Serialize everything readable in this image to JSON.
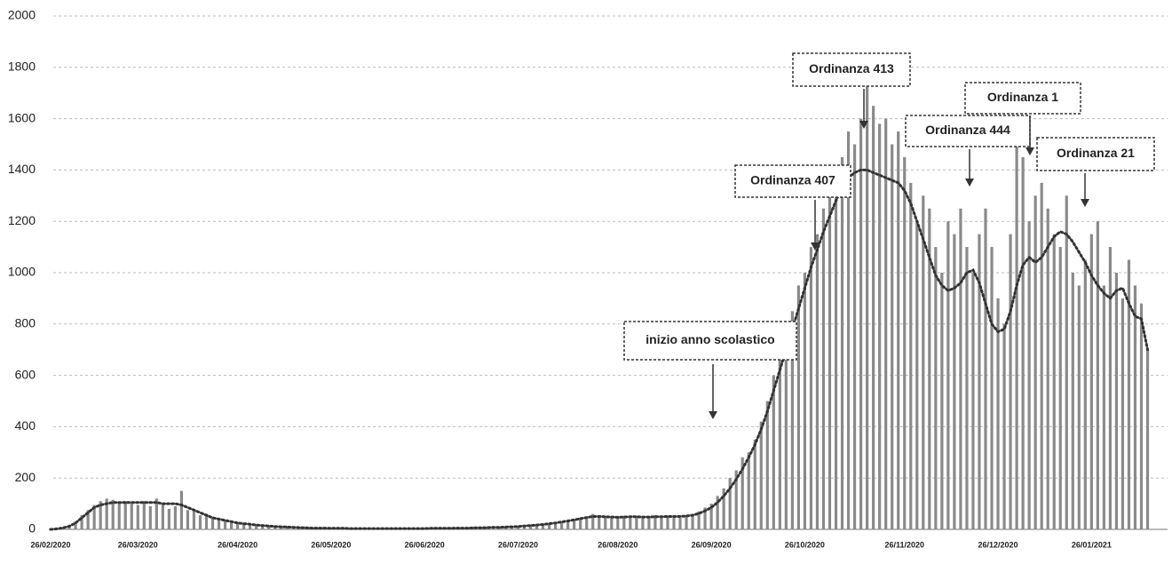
{
  "chart_data": {
    "type": "bar",
    "categories": [
      "26/02/2020",
      null,
      null,
      null,
      null,
      null,
      null,
      null,
      null,
      null,
      null,
      null,
      null,
      null,
      "26/03/2020",
      null,
      null,
      null,
      null,
      null,
      null,
      null,
      null,
      null,
      null,
      null,
      null,
      null,
      null,
      null,
      "26/04/2020",
      null,
      null,
      null,
      null,
      null,
      null,
      null,
      null,
      null,
      null,
      null,
      null,
      null,
      null,
      "26/05/2020",
      null,
      null,
      null,
      null,
      null,
      null,
      null,
      null,
      null,
      null,
      null,
      null,
      null,
      null,
      "26/06/2020",
      null,
      null,
      null,
      null,
      null,
      null,
      null,
      null,
      null,
      null,
      null,
      null,
      null,
      null,
      "26/07/2020",
      null,
      null,
      null,
      null,
      null,
      null,
      null,
      null,
      null,
      null,
      null,
      null,
      null,
      null,
      null,
      "26/08/2020",
      null,
      null,
      null,
      null,
      null,
      null,
      null,
      null,
      null,
      null,
      null,
      null,
      null,
      null,
      "26/09/2020",
      null,
      null,
      null,
      null,
      null,
      null,
      null,
      null,
      null,
      null,
      null,
      null,
      null,
      null,
      "26/10/2020",
      null,
      null,
      null,
      null,
      null,
      null,
      null,
      null,
      null,
      null,
      null,
      null,
      null,
      null,
      null,
      "26/11/2020",
      null,
      null,
      null,
      null,
      null,
      null,
      null,
      null,
      null,
      null,
      null,
      null,
      null,
      null,
      "26/12/2020",
      null,
      null,
      null,
      null,
      null,
      null,
      null,
      null,
      null,
      null,
      null,
      null,
      null,
      null,
      "26/01/2021",
      null,
      null,
      null,
      null,
      null,
      null,
      null,
      null,
      null
    ],
    "series": [
      {
        "type": "bar",
        "color": "#8a8a8a",
        "values": [
          1,
          3,
          8,
          15,
          30,
          55,
          75,
          95,
          110,
          120,
          115,
          105,
          110,
          100,
          95,
          110,
          90,
          120,
          100,
          80,
          90,
          150,
          75,
          70,
          55,
          60,
          45,
          40,
          35,
          30,
          28,
          25,
          20,
          18,
          15,
          14,
          12,
          10,
          9,
          8,
          7,
          6,
          6,
          5,
          5,
          4,
          3,
          4,
          3,
          3,
          4,
          3,
          3,
          2,
          3,
          3,
          4,
          3,
          3,
          4,
          3,
          4,
          3,
          4,
          5,
          4,
          5,
          6,
          5,
          6,
          7,
          8,
          8,
          9,
          10,
          12,
          14,
          15,
          18,
          20,
          22,
          25,
          30,
          35,
          40,
          45,
          50,
          60,
          55,
          50,
          48,
          45,
          50,
          48,
          52,
          45,
          50,
          55,
          48,
          52,
          50,
          45,
          55,
          60,
          70,
          85,
          100,
          130,
          160,
          200,
          230,
          280,
          300,
          350,
          420,
          500,
          600,
          700,
          800,
          850,
          950,
          1000,
          1100,
          1150,
          1250,
          1300,
          1400,
          1450,
          1550,
          1500,
          1600,
          1750,
          1650,
          1580,
          1600,
          1500,
          1550,
          1450,
          1350,
          1200,
          1300,
          1250,
          1100,
          1000,
          1200,
          1150,
          1250,
          1100,
          1000,
          1150,
          1250,
          1100,
          900,
          800,
          1150,
          1500,
          1450,
          1200,
          1300,
          1350,
          1250,
          1150,
          1100,
          1300,
          1000,
          950,
          1050,
          1150,
          1200,
          950,
          1100,
          1000,
          900,
          1050,
          950,
          880,
          700
        ]
      },
      {
        "type": "line",
        "color": "#333333",
        "values": [
          0,
          2,
          6,
          12,
          25,
          45,
          65,
          85,
          95,
          100,
          105,
          105,
          105,
          105,
          105,
          105,
          105,
          105,
          100,
          100,
          100,
          95,
          85,
          75,
          65,
          55,
          45,
          40,
          35,
          30,
          25,
          22,
          20,
          17,
          15,
          13,
          11,
          10,
          9,
          8,
          7,
          6,
          5,
          5,
          5,
          4,
          4,
          4,
          3,
          3,
          3,
          3,
          3,
          3,
          3,
          3,
          3,
          3,
          3,
          3,
          3,
          4,
          4,
          4,
          4,
          5,
          5,
          5,
          6,
          6,
          7,
          8,
          8,
          9,
          10,
          11,
          13,
          15,
          17,
          19,
          22,
          25,
          29,
          33,
          37,
          42,
          46,
          50,
          50,
          49,
          48,
          47,
          48,
          49,
          49,
          48,
          48,
          49,
          49,
          50,
          50,
          50,
          52,
          55,
          62,
          72,
          85,
          105,
          130,
          160,
          195,
          235,
          280,
          330,
          390,
          460,
          540,
          620,
          700,
          780,
          860,
          940,
          1020,
          1090,
          1160,
          1220,
          1280,
          1330,
          1370,
          1390,
          1400,
          1400,
          1390,
          1380,
          1370,
          1360,
          1350,
          1320,
          1270,
          1200,
          1130,
          1060,
          990,
          950,
          930,
          940,
          960,
          1000,
          1010,
          960,
          880,
          800,
          770,
          780,
          850,
          950,
          1030,
          1060,
          1040,
          1060,
          1100,
          1140,
          1160,
          1150,
          1120,
          1080,
          1040,
          990,
          950,
          920,
          900,
          930,
          940,
          880,
          830,
          820,
          700
        ]
      }
    ],
    "ylim": [
      0,
      2000
    ],
    "yticks": [
      0,
      200,
      400,
      600,
      800,
      1000,
      1200,
      1400,
      1600,
      1800,
      2000
    ],
    "grid": true,
    "annotations": [
      "inizio anno scolastico",
      "Ordinanza 407",
      "Ordinanza 413",
      "Ordinanza 444",
      "Ordinanza 1",
      "Ordinanza 21"
    ]
  }
}
